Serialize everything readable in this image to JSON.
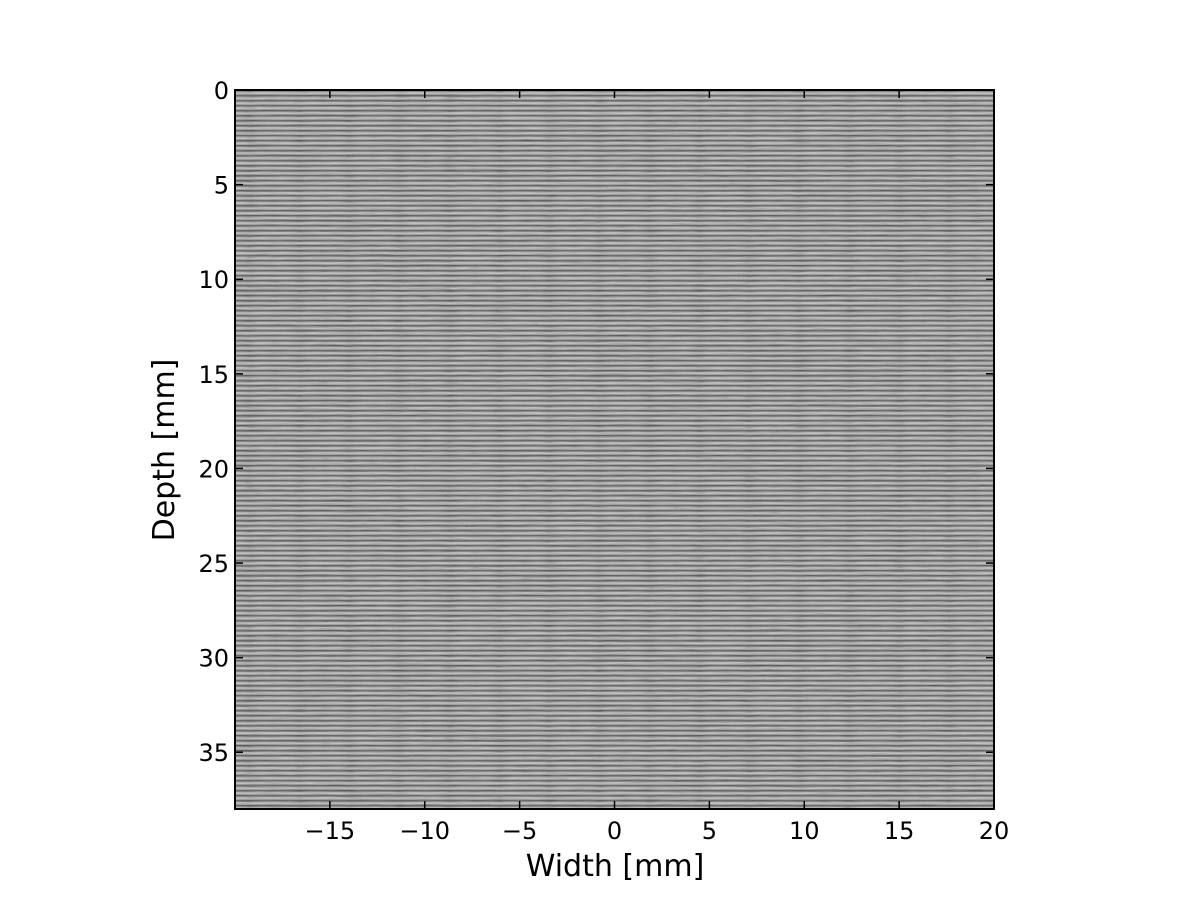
{
  "chart_data": {
    "type": "heatmap",
    "title": "",
    "xlabel": "Width [mm]",
    "ylabel": "Depth [mm]",
    "xlim": [
      -20,
      20
    ],
    "ylim": [
      38,
      0
    ],
    "x_ticks": [
      -15,
      -10,
      -5,
      0,
      5,
      10,
      15,
      20
    ],
    "x_tick_labels": [
      "−15",
      "−10",
      "−5",
      "0",
      "5",
      "10",
      "15",
      "20"
    ],
    "y_ticks": [
      0,
      5,
      10,
      15,
      20,
      25,
      30,
      35
    ],
    "y_tick_labels": [
      "0",
      "5",
      "10",
      "15",
      "20",
      "25",
      "30",
      "35"
    ],
    "colormap": "gray",
    "grid": false,
    "legend": "none",
    "description_of_values": "ultrasound RF data, oscillating gray stripes"
  }
}
